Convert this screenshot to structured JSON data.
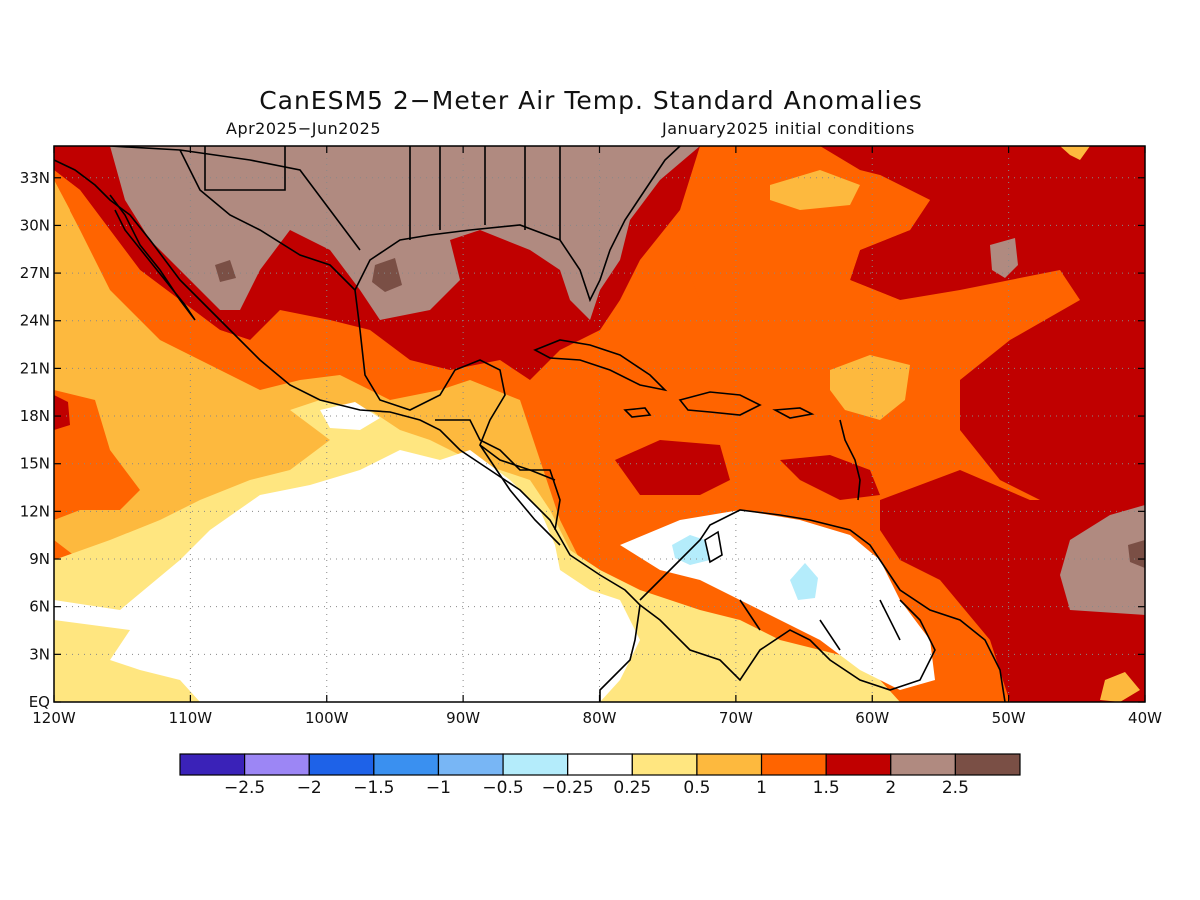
{
  "title": "CanESM5 2−Meter Air Temp. Standard Anomalies",
  "subtitle_left": "Apr2025−Jun2025",
  "subtitle_right": "January2025 initial conditions",
  "map": {
    "lon_range": [
      -120,
      -40
    ],
    "lat_range": [
      0,
      35
    ],
    "lat_ticks": [
      {
        "value": 33,
        "label": "33N"
      },
      {
        "value": 30,
        "label": "30N"
      },
      {
        "value": 27,
        "label": "27N"
      },
      {
        "value": 24,
        "label": "24N"
      },
      {
        "value": 21,
        "label": "21N"
      },
      {
        "value": 18,
        "label": "18N"
      },
      {
        "value": 15,
        "label": "15N"
      },
      {
        "value": 12,
        "label": "12N"
      },
      {
        "value": 9,
        "label": "9N"
      },
      {
        "value": 6,
        "label": "6N"
      },
      {
        "value": 3,
        "label": "3N"
      },
      {
        "value": 0,
        "label": "EQ"
      }
    ],
    "lon_ticks": [
      {
        "value": -120,
        "label": "120W"
      },
      {
        "value": -110,
        "label": "110W"
      },
      {
        "value": -100,
        "label": "100W"
      },
      {
        "value": -90,
        "label": "90W"
      },
      {
        "value": -80,
        "label": "80W"
      },
      {
        "value": -70,
        "label": "70W"
      },
      {
        "value": -60,
        "label": "60W"
      },
      {
        "value": -50,
        "label": "50W"
      },
      {
        "value": -40,
        "label": "40W"
      }
    ],
    "grid": "dotted"
  },
  "colorbar": {
    "colors": [
      "#3a22b8",
      "#9c86f5",
      "#1e62e8",
      "#3a90f0",
      "#78b6f5",
      "#b4ecfb",
      "#ffffff",
      "#ffe680",
      "#fdb93e",
      "#ff6400",
      "#c00000",
      "#b08a80",
      "#7a4f45"
    ],
    "labels": [
      "−2.5",
      "−2",
      "−1.5",
      "−1",
      "−0.5",
      "−0.25",
      "0.25",
      "0.5",
      "1",
      "1.5",
      "2",
      "2.5"
    ]
  }
}
